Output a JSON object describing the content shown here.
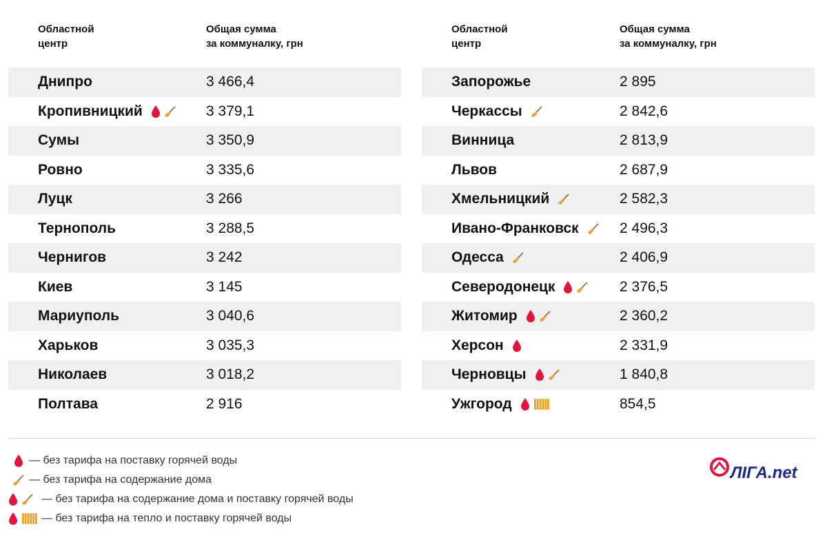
{
  "header": {
    "col1": "Областной\nцентр",
    "col2": "Общая сумма\nза коммуналку, грн"
  },
  "left_rows": [
    {
      "city": "Днипро",
      "sum": "3 466,4",
      "icons": []
    },
    {
      "city": "Кропивницкий",
      "sum": "3 379,1",
      "icons": [
        "drop",
        "broom"
      ]
    },
    {
      "city": "Сумы",
      "sum": "3 350,9",
      "icons": []
    },
    {
      "city": "Ровно",
      "sum": "3 335,6",
      "icons": []
    },
    {
      "city": "Луцк",
      "sum": "3 266",
      "icons": []
    },
    {
      "city": "Тернополь",
      "sum": "3 288,5",
      "icons": []
    },
    {
      "city": "Чернигов",
      "sum": "3 242",
      "icons": []
    },
    {
      "city": "Киев",
      "sum": "3 145",
      "icons": []
    },
    {
      "city": "Мариуполь",
      "sum": "3 040,6",
      "icons": []
    },
    {
      "city": "Харьков",
      "sum": "3 035,3",
      "icons": []
    },
    {
      "city": "Николаев",
      "sum": "3 018,2",
      "icons": []
    },
    {
      "city": "Полтава",
      "sum": "2 916",
      "icons": []
    }
  ],
  "right_rows": [
    {
      "city": "Запорожье",
      "sum": "2 895",
      "icons": []
    },
    {
      "city": "Черкассы",
      "sum": "2 842,6",
      "icons": [
        "broom"
      ]
    },
    {
      "city": "Винница",
      "sum": "2 813,9",
      "icons": []
    },
    {
      "city": "Львов",
      "sum": "2 687,9",
      "icons": []
    },
    {
      "city": "Хмельницкий",
      "sum": "2 582,3",
      "icons": [
        "broom"
      ]
    },
    {
      "city": "Ивано-Франковск",
      "sum": "2 496,3",
      "icons": [
        "broom"
      ]
    },
    {
      "city": "Одесса",
      "sum": "2 406,9",
      "icons": [
        "broom"
      ]
    },
    {
      "city": "Северодонецк",
      "sum": "2 376,5",
      "icons": [
        "drop",
        "broom"
      ]
    },
    {
      "city": "Житомир",
      "sum": "2 360,2",
      "icons": [
        "drop",
        "broom"
      ]
    },
    {
      "city": "Херсон",
      "sum": "2 331,9",
      "icons": [
        "drop"
      ]
    },
    {
      "city": "Черновцы",
      "sum": "1 840,8",
      "icons": [
        "drop",
        "broom"
      ]
    },
    {
      "city": "Ужгород",
      "sum": "854,5",
      "icons": [
        "drop",
        "radiator"
      ]
    }
  ],
  "legend": [
    {
      "icons": [
        "drop"
      ],
      "text": "— без тарифа на поставку горячей воды"
    },
    {
      "icons": [
        "broom"
      ],
      "text": "— без тарифа на содержание дома"
    },
    {
      "icons": [
        "drop",
        "broom"
      ],
      "text": "— без тарифа на содержание дома и поставку горячей воды"
    },
    {
      "icons": [
        "drop",
        "radiator"
      ],
      "text": "— без тарифа на тепло и поставку горячей воды"
    }
  ],
  "logo": {
    "text": "ЛIГА.net",
    "icon": "liga-logo-icon"
  },
  "colors": {
    "drop": "#e0143c",
    "broom": "#e8a33a",
    "radiator": "#f0a020",
    "shade": "#f0f0f0",
    "logo": "#1a2a8c"
  }
}
